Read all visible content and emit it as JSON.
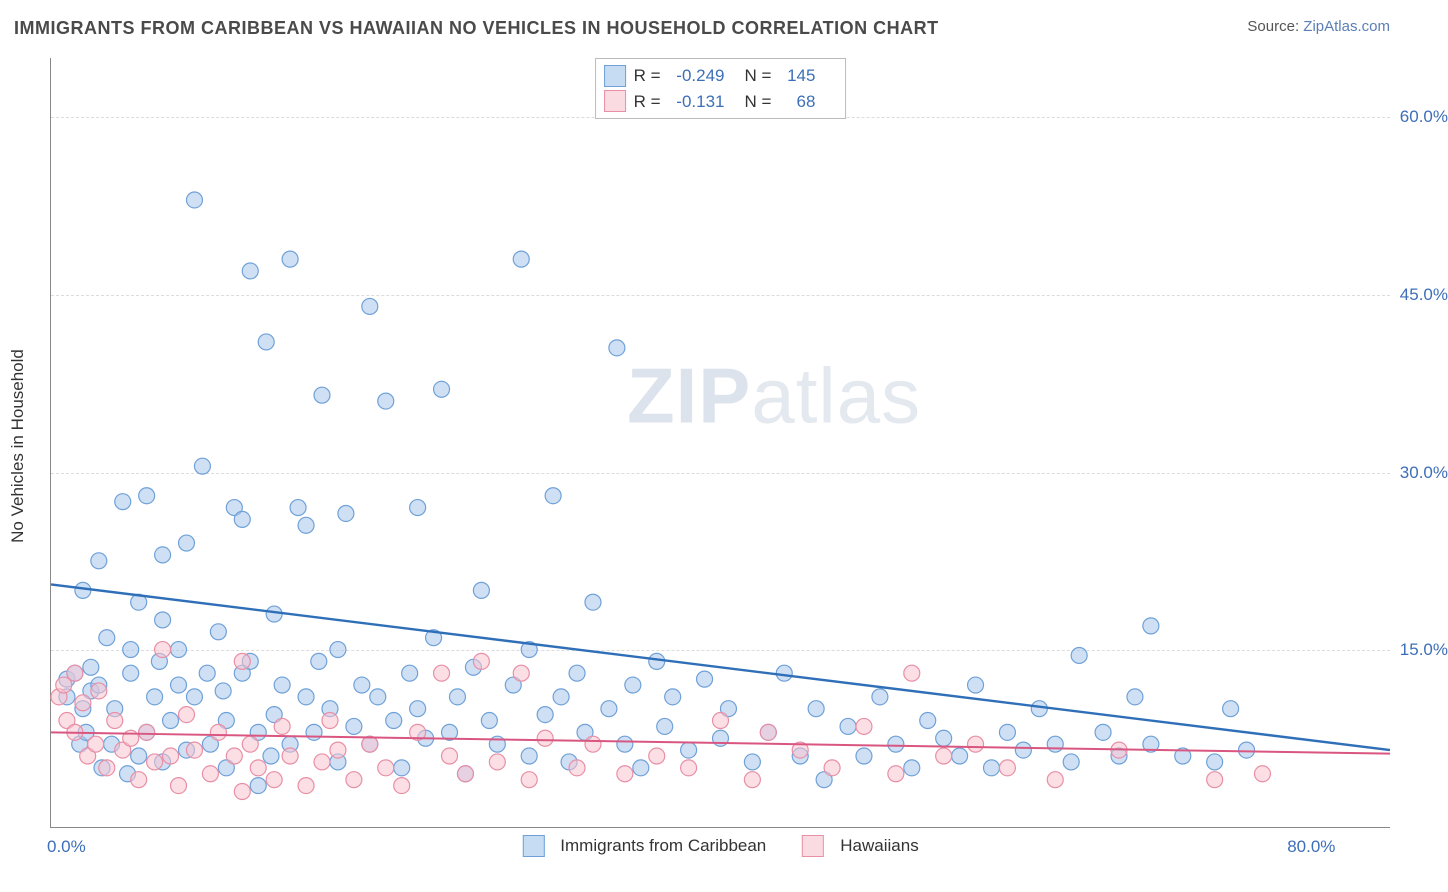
{
  "title": "IMMIGRANTS FROM CARIBBEAN VS HAWAIIAN NO VEHICLES IN HOUSEHOLD CORRELATION CHART",
  "source": {
    "label": "Source:",
    "name": "ZipAtlas.com"
  },
  "watermark": {
    "bold": "ZIP",
    "rest": "atlas"
  },
  "yaxis": {
    "label": "No Vehicles in Household",
    "ticks": [
      {
        "value": 15.0,
        "label": "15.0%"
      },
      {
        "value": 30.0,
        "label": "30.0%"
      },
      {
        "value": 45.0,
        "label": "45.0%"
      },
      {
        "value": 60.0,
        "label": "60.0%"
      }
    ],
    "min": 0,
    "max": 65
  },
  "xaxis": {
    "ticks": [
      {
        "value": 0.0,
        "label": "0.0%"
      },
      {
        "value": 80.0,
        "label": "80.0%"
      }
    ],
    "min": 0,
    "max": 84
  },
  "series": [
    {
      "key": "caribbean",
      "name": "Immigrants from Caribbean",
      "fill": "#a8c7ec",
      "stroke": "#6fa1d8",
      "fill_opacity": 0.55,
      "line_color": "#2f6fb8",
      "line_width": 2.4,
      "r_value": "-0.249",
      "n_value": "145",
      "stat_color": "#3d6fb8",
      "regression": {
        "x1": 0,
        "y1": 20.5,
        "x2": 84,
        "y2": 6.5
      },
      "points": [
        [
          1,
          11
        ],
        [
          1,
          12.5
        ],
        [
          1.5,
          13
        ],
        [
          1.8,
          7
        ],
        [
          2,
          20
        ],
        [
          2,
          10
        ],
        [
          2.2,
          8
        ],
        [
          2.5,
          11.5
        ],
        [
          2.5,
          13.5
        ],
        [
          3,
          22.5
        ],
        [
          3,
          12
        ],
        [
          3.2,
          5
        ],
        [
          3.5,
          16
        ],
        [
          3.8,
          7
        ],
        [
          4,
          10
        ],
        [
          4.5,
          27.5
        ],
        [
          4.8,
          4.5
        ],
        [
          5,
          13
        ],
        [
          5,
          15
        ],
        [
          5.5,
          19
        ],
        [
          5.5,
          6
        ],
        [
          6,
          8
        ],
        [
          6,
          28
        ],
        [
          6.5,
          11
        ],
        [
          6.8,
          14
        ],
        [
          7,
          17.5
        ],
        [
          7,
          23
        ],
        [
          7,
          5.5
        ],
        [
          7.5,
          9
        ],
        [
          8,
          12
        ],
        [
          8,
          15
        ],
        [
          8.5,
          24
        ],
        [
          8.5,
          6.5
        ],
        [
          9,
          11
        ],
        [
          9,
          53
        ],
        [
          9.5,
          30.5
        ],
        [
          9.8,
          13
        ],
        [
          10,
          7
        ],
        [
          10.5,
          16.5
        ],
        [
          10.8,
          11.5
        ],
        [
          11,
          5
        ],
        [
          11,
          9
        ],
        [
          11.5,
          27
        ],
        [
          12,
          26
        ],
        [
          12,
          13
        ],
        [
          12.5,
          14
        ],
        [
          12.5,
          47
        ],
        [
          13,
          8
        ],
        [
          13,
          3.5
        ],
        [
          13.5,
          41
        ],
        [
          13.8,
          6
        ],
        [
          14,
          9.5
        ],
        [
          14,
          18
        ],
        [
          14.5,
          12
        ],
        [
          15,
          7
        ],
        [
          15,
          48
        ],
        [
          15.5,
          27
        ],
        [
          16,
          11
        ],
        [
          16,
          25.5
        ],
        [
          16.5,
          8
        ],
        [
          16.8,
          14
        ],
        [
          17,
          36.5
        ],
        [
          17.5,
          10
        ],
        [
          18,
          5.5
        ],
        [
          18,
          15
        ],
        [
          18.5,
          26.5
        ],
        [
          19,
          8.5
        ],
        [
          19.5,
          12
        ],
        [
          20,
          44
        ],
        [
          20,
          7
        ],
        [
          20.5,
          11
        ],
        [
          21,
          36
        ],
        [
          21.5,
          9
        ],
        [
          22,
          5
        ],
        [
          22.5,
          13
        ],
        [
          23,
          27
        ],
        [
          23,
          10
        ],
        [
          23.5,
          7.5
        ],
        [
          24,
          16
        ],
        [
          24.5,
          37
        ],
        [
          25,
          8
        ],
        [
          25.5,
          11
        ],
        [
          26,
          4.5
        ],
        [
          26.5,
          13.5
        ],
        [
          27,
          20
        ],
        [
          27.5,
          9
        ],
        [
          28,
          7
        ],
        [
          29,
          12
        ],
        [
          29.5,
          48
        ],
        [
          30,
          15
        ],
        [
          30,
          6
        ],
        [
          31,
          9.5
        ],
        [
          31.5,
          28
        ],
        [
          32,
          11
        ],
        [
          32.5,
          5.5
        ],
        [
          33,
          13
        ],
        [
          33.5,
          8
        ],
        [
          34,
          19
        ],
        [
          35,
          10
        ],
        [
          35.5,
          40.5
        ],
        [
          36,
          7
        ],
        [
          36.5,
          12
        ],
        [
          37,
          5
        ],
        [
          38,
          14
        ],
        [
          38.5,
          8.5
        ],
        [
          39,
          11
        ],
        [
          40,
          6.5
        ],
        [
          41,
          12.5
        ],
        [
          42,
          7.5
        ],
        [
          42.5,
          10
        ],
        [
          44,
          5.5
        ],
        [
          45,
          8
        ],
        [
          46,
          13
        ],
        [
          47,
          6
        ],
        [
          48,
          10
        ],
        [
          48.5,
          4
        ],
        [
          50,
          8.5
        ],
        [
          51,
          6
        ],
        [
          52,
          11
        ],
        [
          53,
          7
        ],
        [
          54,
          5
        ],
        [
          55,
          9
        ],
        [
          56,
          7.5
        ],
        [
          57,
          6
        ],
        [
          58,
          12
        ],
        [
          59,
          5
        ],
        [
          60,
          8
        ],
        [
          61,
          6.5
        ],
        [
          62,
          10
        ],
        [
          63,
          7
        ],
        [
          64,
          5.5
        ],
        [
          64.5,
          14.5
        ],
        [
          66,
          8
        ],
        [
          67,
          6
        ],
        [
          68,
          11
        ],
        [
          69,
          17
        ],
        [
          69,
          7
        ],
        [
          71,
          6
        ],
        [
          73,
          5.5
        ],
        [
          74,
          10
        ],
        [
          75,
          6.5
        ]
      ]
    },
    {
      "key": "hawaiian",
      "name": "Hawaiians",
      "fill": "#f7c5d0",
      "stroke": "#e88fa6",
      "fill_opacity": 0.55,
      "line_color": "#d95680",
      "line_width": 2,
      "r_value": "-0.131",
      "n_value": "68",
      "stat_color": "#de6b8b",
      "regression": {
        "x1": 0,
        "y1": 8.0,
        "x2": 84,
        "y2": 6.2
      },
      "points": [
        [
          0.5,
          11
        ],
        [
          0.8,
          12
        ],
        [
          1,
          9
        ],
        [
          1.5,
          13
        ],
        [
          1.5,
          8
        ],
        [
          2,
          10.5
        ],
        [
          2.3,
          6
        ],
        [
          2.8,
          7
        ],
        [
          3,
          11.5
        ],
        [
          3.5,
          5
        ],
        [
          4,
          9
        ],
        [
          4.5,
          6.5
        ],
        [
          5,
          7.5
        ],
        [
          5.5,
          4
        ],
        [
          6,
          8
        ],
        [
          6.5,
          5.5
        ],
        [
          7,
          15
        ],
        [
          7.5,
          6
        ],
        [
          8,
          3.5
        ],
        [
          8.5,
          9.5
        ],
        [
          9,
          6.5
        ],
        [
          10,
          4.5
        ],
        [
          10.5,
          8
        ],
        [
          11.5,
          6
        ],
        [
          12,
          3
        ],
        [
          12,
          14
        ],
        [
          12.5,
          7
        ],
        [
          13,
          5
        ],
        [
          14,
          4
        ],
        [
          14.5,
          8.5
        ],
        [
          15,
          6
        ],
        [
          16,
          3.5
        ],
        [
          17,
          5.5
        ],
        [
          17.5,
          9
        ],
        [
          18,
          6.5
        ],
        [
          19,
          4
        ],
        [
          20,
          7
        ],
        [
          21,
          5
        ],
        [
          22,
          3.5
        ],
        [
          23,
          8
        ],
        [
          24.5,
          13
        ],
        [
          25,
          6
        ],
        [
          26,
          4.5
        ],
        [
          27,
          14
        ],
        [
          28,
          5.5
        ],
        [
          29.5,
          13
        ],
        [
          30,
          4
        ],
        [
          31,
          7.5
        ],
        [
          33,
          5
        ],
        [
          34,
          7
        ],
        [
          36,
          4.5
        ],
        [
          38,
          6
        ],
        [
          40,
          5
        ],
        [
          42,
          9
        ],
        [
          44,
          4
        ],
        [
          45,
          8
        ],
        [
          47,
          6.5
        ],
        [
          49,
          5
        ],
        [
          51,
          8.5
        ],
        [
          53,
          4.5
        ],
        [
          54,
          13
        ],
        [
          56,
          6
        ],
        [
          58,
          7
        ],
        [
          60,
          5
        ],
        [
          63,
          4
        ],
        [
          67,
          6.5
        ],
        [
          73,
          4
        ],
        [
          76,
          4.5
        ]
      ]
    }
  ],
  "legend_stats": {
    "columns": [
      "R =",
      "N ="
    ]
  },
  "marker_radius": 8,
  "background": "#ffffff",
  "grid_color": "#dcdcdc"
}
